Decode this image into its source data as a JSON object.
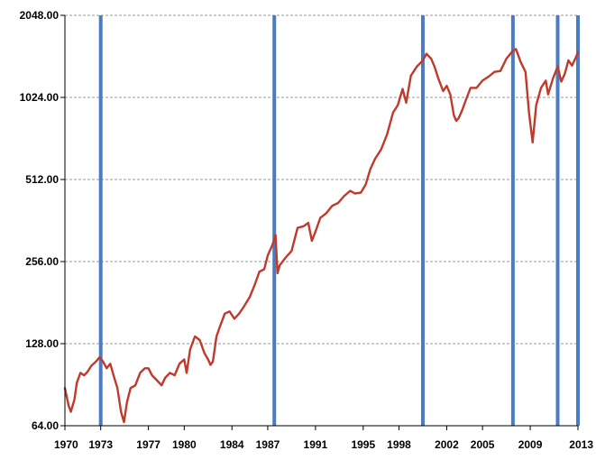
{
  "chart_data": {
    "type": "line",
    "title": "",
    "xlabel": "",
    "ylabel": "",
    "scale_y": "log2",
    "ylim": [
      64,
      2048
    ],
    "xlim": [
      1970,
      2013
    ],
    "y_ticks": [
      64,
      128,
      256,
      512,
      1024,
      2048
    ],
    "y_tick_labels": [
      "64.00",
      "128.00",
      "256.00",
      "512.00",
      "1024.00",
      "2048.00"
    ],
    "x_ticks": [
      1970,
      1973,
      1977,
      1980,
      1984,
      1987,
      1991,
      1995,
      1998,
      2002,
      2005,
      2009,
      2013
    ],
    "x_tick_labels": [
      "1970",
      "1973",
      "1977",
      "1980",
      "1984",
      "1987",
      "1991",
      "1995",
      "1998",
      "2002",
      "2005",
      "2009",
      "2013"
    ],
    "grid": "horizontal dashed",
    "legend": "none",
    "colors": {
      "series": "#c0392b",
      "markers": "#4a7cc4",
      "axis": "#000000",
      "grid": "#9a9a9a"
    },
    "series": [
      {
        "points": [
          [
            1970.0,
            88
          ],
          [
            1970.3,
            76
          ],
          [
            1970.5,
            72
          ],
          [
            1970.8,
            80
          ],
          [
            1971.0,
            92
          ],
          [
            1971.3,
            100
          ],
          [
            1971.6,
            98
          ],
          [
            1971.9,
            101
          ],
          [
            1972.2,
            106
          ],
          [
            1972.6,
            110
          ],
          [
            1972.9,
            114
          ],
          [
            1973.2,
            110
          ],
          [
            1973.5,
            104
          ],
          [
            1973.8,
            108
          ],
          [
            1974.1,
            97
          ],
          [
            1974.4,
            88
          ],
          [
            1974.7,
            72
          ],
          [
            1974.95,
            66
          ],
          [
            1975.2,
            78
          ],
          [
            1975.5,
            88
          ],
          [
            1975.9,
            90
          ],
          [
            1976.3,
            100
          ],
          [
            1976.7,
            104
          ],
          [
            1977.0,
            104
          ],
          [
            1977.3,
            98
          ],
          [
            1977.7,
            94
          ],
          [
            1978.1,
            90
          ],
          [
            1978.4,
            96
          ],
          [
            1978.8,
            100
          ],
          [
            1979.2,
            98
          ],
          [
            1979.6,
            108
          ],
          [
            1980.0,
            112
          ],
          [
            1980.2,
            100
          ],
          [
            1980.5,
            122
          ],
          [
            1980.9,
            136
          ],
          [
            1981.3,
            132
          ],
          [
            1981.7,
            118
          ],
          [
            1982.0,
            112
          ],
          [
            1982.2,
            107
          ],
          [
            1982.4,
            110
          ],
          [
            1982.7,
            136
          ],
          [
            1983.0,
            148
          ],
          [
            1983.4,
            165
          ],
          [
            1983.8,
            168
          ],
          [
            1984.2,
            158
          ],
          [
            1984.6,
            165
          ],
          [
            1985.0,
            175
          ],
          [
            1985.5,
            190
          ],
          [
            1985.9,
            210
          ],
          [
            1986.3,
            235
          ],
          [
            1986.7,
            240
          ],
          [
            1987.0,
            270
          ],
          [
            1987.4,
            295
          ],
          [
            1987.65,
            320
          ],
          [
            1987.82,
            232
          ],
          [
            1988.0,
            248
          ],
          [
            1988.5,
            265
          ],
          [
            1989.0,
            280
          ],
          [
            1989.5,
            340
          ],
          [
            1990.0,
            345
          ],
          [
            1990.4,
            355
          ],
          [
            1990.7,
            305
          ],
          [
            1991.0,
            330
          ],
          [
            1991.4,
            370
          ],
          [
            1991.9,
            385
          ],
          [
            1992.4,
            410
          ],
          [
            1992.9,
            420
          ],
          [
            1993.4,
            445
          ],
          [
            1993.9,
            465
          ],
          [
            1994.3,
            455
          ],
          [
            1994.8,
            458
          ],
          [
            1995.2,
            490
          ],
          [
            1995.6,
            560
          ],
          [
            1996.0,
            610
          ],
          [
            1996.5,
            660
          ],
          [
            1997.0,
            750
          ],
          [
            1997.5,
            900
          ],
          [
            1997.9,
            960
          ],
          [
            1998.3,
            1100
          ],
          [
            1998.6,
            980
          ],
          [
            1999.0,
            1230
          ],
          [
            1999.5,
            1330
          ],
          [
            2000.0,
            1400
          ],
          [
            2000.3,
            1480
          ],
          [
            2000.7,
            1420
          ],
          [
            2001.0,
            1320
          ],
          [
            2001.3,
            1200
          ],
          [
            2001.7,
            1080
          ],
          [
            2002.0,
            1130
          ],
          [
            2002.3,
            1050
          ],
          [
            2002.6,
            880
          ],
          [
            2002.8,
            840
          ],
          [
            2003.0,
            860
          ],
          [
            2003.3,
            920
          ],
          [
            2003.6,
            1000
          ],
          [
            2004.0,
            1110
          ],
          [
            2004.5,
            1110
          ],
          [
            2005.0,
            1180
          ],
          [
            2005.5,
            1220
          ],
          [
            2006.0,
            1270
          ],
          [
            2006.5,
            1280
          ],
          [
            2007.0,
            1420
          ],
          [
            2007.5,
            1510
          ],
          [
            2007.8,
            1540
          ],
          [
            2008.2,
            1380
          ],
          [
            2008.6,
            1270
          ],
          [
            2008.9,
            900
          ],
          [
            2009.1,
            760
          ],
          [
            2009.2,
            700
          ],
          [
            2009.5,
            960
          ],
          [
            2009.9,
            1110
          ],
          [
            2010.3,
            1180
          ],
          [
            2010.5,
            1050
          ],
          [
            2010.9,
            1200
          ],
          [
            2011.3,
            1330
          ],
          [
            2011.6,
            1170
          ],
          [
            2011.9,
            1250
          ],
          [
            2012.2,
            1400
          ],
          [
            2012.5,
            1340
          ],
          [
            2012.8,
            1430
          ],
          [
            2013.0,
            1500
          ]
        ]
      }
    ],
    "vertical_markers": [
      1973.0,
      1987.55,
      2000.0,
      2007.55,
      2011.3,
      2013.0
    ]
  }
}
